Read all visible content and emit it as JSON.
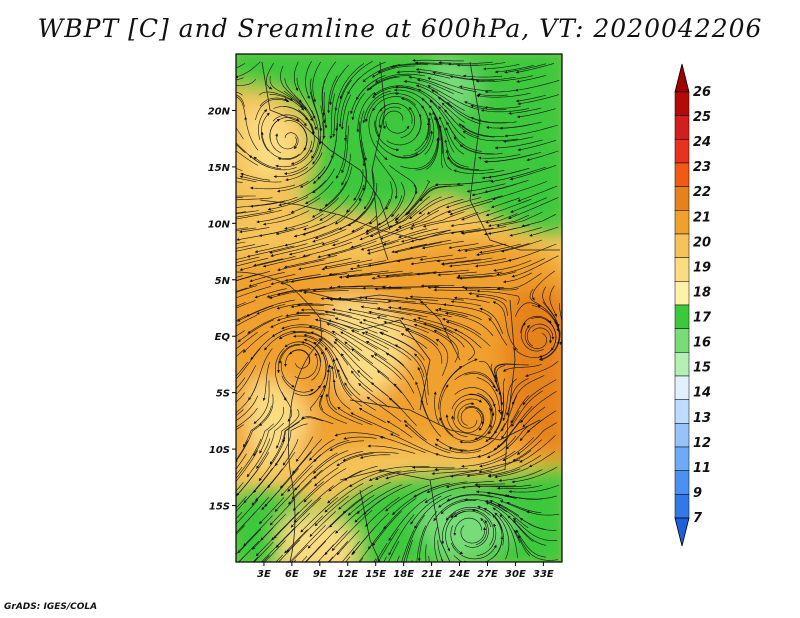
{
  "title": "WBPT [C] and Sreamline at 600hPa, VT: 2020042206",
  "credit": "GrADS: IGES/COLA",
  "map": {
    "projection": "lat-lon",
    "lon_range": [
      0,
      35
    ],
    "lat_range": [
      -20,
      25
    ],
    "lat_ticks": [
      {
        "value": 20,
        "label": "20N"
      },
      {
        "value": 15,
        "label": "15N"
      },
      {
        "value": 10,
        "label": "10N"
      },
      {
        "value": 5,
        "label": "5N"
      },
      {
        "value": 0,
        "label": "EQ"
      },
      {
        "value": -5,
        "label": "5S"
      },
      {
        "value": -10,
        "label": "10S"
      },
      {
        "value": -15,
        "label": "15S"
      }
    ],
    "lon_ticks": [
      {
        "value": 3,
        "label": "3E"
      },
      {
        "value": 6,
        "label": "6E"
      },
      {
        "value": 9,
        "label": "9E"
      },
      {
        "value": 12,
        "label": "12E"
      },
      {
        "value": 15,
        "label": "15E"
      },
      {
        "value": 18,
        "label": "18E"
      },
      {
        "value": 21,
        "label": "21E"
      },
      {
        "value": 24,
        "label": "24E"
      },
      {
        "value": 27,
        "label": "27E"
      },
      {
        "value": 30,
        "label": "30E"
      },
      {
        "value": 33,
        "label": "33E"
      }
    ],
    "field": "wet-bulb potential temperature (shaded) with streamlines",
    "dominant_levels": {
      "north_band": "16-18 (green)",
      "central_band": "19-22 (yellow-orange)",
      "south_band": "16-18 (green)"
    }
  },
  "colorbar": {
    "orientation": "vertical",
    "extends": "both",
    "colors": [
      "#1f5fdc",
      "#3278e6",
      "#4b91f0",
      "#6eaaf5",
      "#96c3fa",
      "#bedcff",
      "#e1f0ff",
      "#b4f0b4",
      "#78dc78",
      "#3cc83c",
      "#fff0aa",
      "#fadc82",
      "#f5c35a",
      "#f0a02d",
      "#e6821e",
      "#f05a14",
      "#e6321e",
      "#d21e1e",
      "#b40a0a",
      "#a00000"
    ],
    "labels": [
      "26",
      "25",
      "24",
      "23",
      "22",
      "21",
      "20",
      "19",
      "18",
      "17",
      "16",
      "15",
      "14",
      "13",
      "12",
      "11",
      "9",
      "7"
    ]
  }
}
